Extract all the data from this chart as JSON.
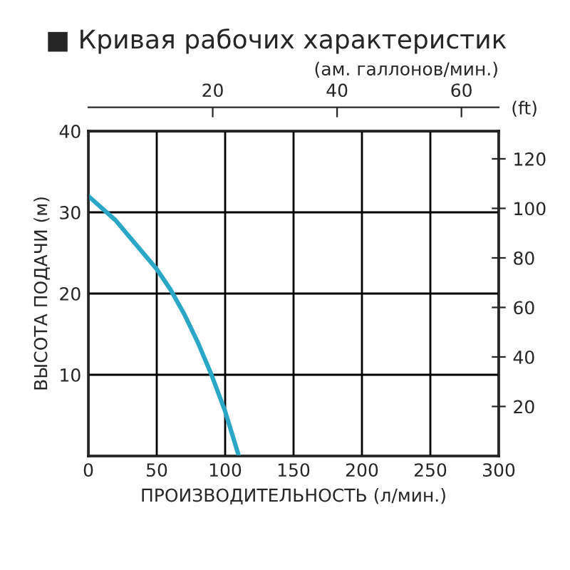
{
  "chart_data": {
    "type": "line",
    "title": "■ Кривая рабочих характеристик",
    "xlabel": "ПРОИЗВОДИТЕЛЬНОСТЬ (л/мин.)",
    "ylabel": "ВЫСОТА ПОДАЧИ (м)",
    "y2label": "(ft)",
    "x2label": "(ам. галлонов/мин.)",
    "x": [
      0,
      10,
      20,
      30,
      40,
      50,
      60,
      70,
      80,
      90,
      100,
      110
    ],
    "series": [
      {
        "color": "#2aa7c7",
        "values": [
          32,
          30.5,
          29,
          27,
          25,
          23,
          20.5,
          17.5,
          14,
          10,
          5.5,
          0
        ]
      }
    ],
    "xlim": [
      0,
      300
    ],
    "xticks": [
      0,
      50,
      100,
      150,
      200,
      250,
      300
    ],
    "ylim": [
      0,
      40
    ],
    "yticks": [
      10,
      20,
      30,
      40
    ],
    "y2lim": [
      0,
      131.2
    ],
    "y2ticks": [
      20,
      40,
      60,
      80,
      100,
      120
    ],
    "x2lim": [
      0,
      66
    ],
    "x2ticks": [
      20,
      40,
      60
    ],
    "grid": true,
    "line_style": "solid",
    "marker": "none"
  }
}
